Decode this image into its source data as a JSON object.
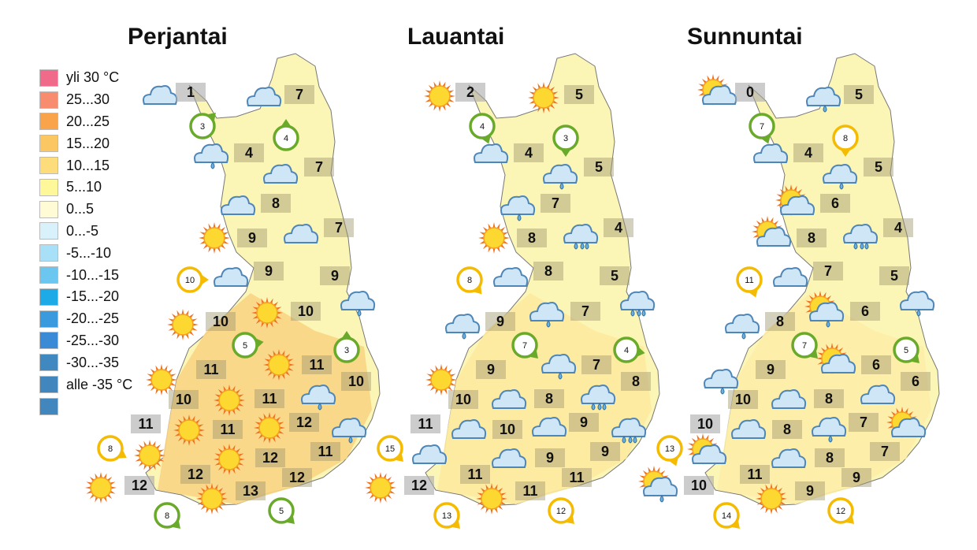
{
  "legend": {
    "items": [
      {
        "label": "yli 30 °C",
        "color": "#f06a8a"
      },
      {
        "label": "25...30",
        "color": "#f78c6e"
      },
      {
        "label": "20...25",
        "color": "#f9a44a"
      },
      {
        "label": "15...20",
        "color": "#fbc762"
      },
      {
        "label": "10...15",
        "color": "#fddc7c"
      },
      {
        "label": "5...10",
        "color": "#fef89a"
      },
      {
        "label": "0...5",
        "color": "#fffbd5"
      },
      {
        "label": "0...-5",
        "color": "#d8f1fb"
      },
      {
        "label": "-5...-10",
        "color": "#a7e0f7"
      },
      {
        "label": "-10...-15",
        "color": "#6cc7f0"
      },
      {
        "label": "-15...-20",
        "color": "#1eaae6"
      },
      {
        "label": "-20...-25",
        "color": "#3a9ade"
      },
      {
        "label": "-25...-30",
        "color": "#3b8ad6"
      },
      {
        "label": "-30...-35",
        "color": "#3f88c0"
      },
      {
        "label": "alle -35 °C",
        "color": "#4187bd"
      },
      {
        "label": "",
        "color": "#4187bd"
      }
    ]
  },
  "colors": {
    "wind_green": "#6aaa2a",
    "wind_yellow": "#f5bb00",
    "land_north": "#fcf6b6",
    "land_south": "#fad585"
  },
  "days": [
    {
      "title": "Perjantai",
      "temps": [
        1,
        7,
        4,
        7,
        8,
        7,
        9,
        9,
        9,
        10,
        10,
        11,
        11,
        10,
        10,
        11,
        11,
        12,
        11,
        12,
        11,
        12,
        12,
        12,
        13
      ],
      "icons": [
        "cloud",
        "cloud",
        "rain-cloud",
        "cloud",
        "cloud",
        "cloud",
        "sun",
        "cloud",
        "rain-cloud",
        "sun",
        "sun",
        "sun",
        "sun",
        "rain-cloud",
        "sun",
        "sun",
        "sun",
        "rain-cloud",
        "sun",
        "sun",
        "sun",
        "sun"
      ],
      "winds": [
        {
          "speed": 3,
          "color": "green",
          "dir": 45
        },
        {
          "speed": 4,
          "color": "green",
          "dir": 0
        },
        {
          "speed": 10,
          "color": "yellow",
          "dir": 90
        },
        {
          "speed": 5,
          "color": "green",
          "dir": 80
        },
        {
          "speed": 3,
          "color": "green",
          "dir": 0
        },
        {
          "speed": 8,
          "color": "yellow",
          "dir": 120
        },
        {
          "speed": 8,
          "color": "green",
          "dir": 135
        },
        {
          "speed": 5,
          "color": "green",
          "dir": 135
        }
      ]
    },
    {
      "title": "Lauantai",
      "temps": [
        2,
        5,
        4,
        5,
        7,
        4,
        8,
        8,
        5,
        7,
        9,
        9,
        7,
        8,
        10,
        8,
        10,
        9,
        11,
        9,
        9,
        11,
        11,
        12,
        11
      ],
      "icons": [
        "sun",
        "sun",
        "cloud",
        "rain-cloud",
        "rain-cloud",
        "heavy-rain-cloud",
        "sun",
        "cloud",
        "heavy-rain-cloud",
        "rain-cloud",
        "rain-cloud",
        "rain-cloud",
        "sun",
        "heavy-rain-cloud",
        "cloud",
        "cloud",
        "cloud",
        "heavy-rain-cloud",
        "cloud",
        "cloud",
        "sun",
        "sun"
      ],
      "winds": [
        {
          "speed": 4,
          "color": "green",
          "dir": 160
        },
        {
          "speed": 3,
          "color": "green",
          "dir": 180
        },
        {
          "speed": 8,
          "color": "yellow",
          "dir": 140
        },
        {
          "speed": 7,
          "color": "green",
          "dir": 135
        },
        {
          "speed": 4,
          "color": "green",
          "dir": 100
        },
        {
          "speed": 15,
          "color": "yellow",
          "dir": 135
        },
        {
          "speed": 13,
          "color": "yellow",
          "dir": 135
        },
        {
          "speed": 12,
          "color": "yellow",
          "dir": 135
        }
      ]
    },
    {
      "title": "Sunnuntai",
      "temps": [
        0,
        5,
        4,
        5,
        6,
        4,
        8,
        7,
        5,
        6,
        8,
        9,
        6,
        6,
        10,
        8,
        8,
        7,
        10,
        8,
        7,
        11,
        9,
        10,
        9
      ],
      "icons": [
        "sun-cloud",
        "rain-cloud",
        "cloud",
        "rain-cloud",
        "sun-cloud",
        "heavy-rain-cloud",
        "sun-cloud",
        "cloud",
        "rain-cloud",
        "sun-rain-cloud",
        "rain-cloud",
        "sun-cloud",
        "rain-cloud",
        "cloud",
        "cloud",
        "cloud",
        "rain-cloud",
        "sun-cloud",
        "sun-cloud",
        "cloud",
        "sun-rain-cloud",
        "sun"
      ],
      "winds": [
        {
          "speed": 7,
          "color": "green",
          "dir": 160
        },
        {
          "speed": 8,
          "color": "yellow",
          "dir": 180
        },
        {
          "speed": 11,
          "color": "yellow",
          "dir": 160
        },
        {
          "speed": 7,
          "color": "green",
          "dir": 135
        },
        {
          "speed": 5,
          "color": "green",
          "dir": 135
        },
        {
          "speed": 13,
          "color": "yellow",
          "dir": 160
        },
        {
          "speed": 14,
          "color": "yellow",
          "dir": 135
        },
        {
          "speed": 12,
          "color": "yellow",
          "dir": 135
        }
      ]
    }
  ]
}
